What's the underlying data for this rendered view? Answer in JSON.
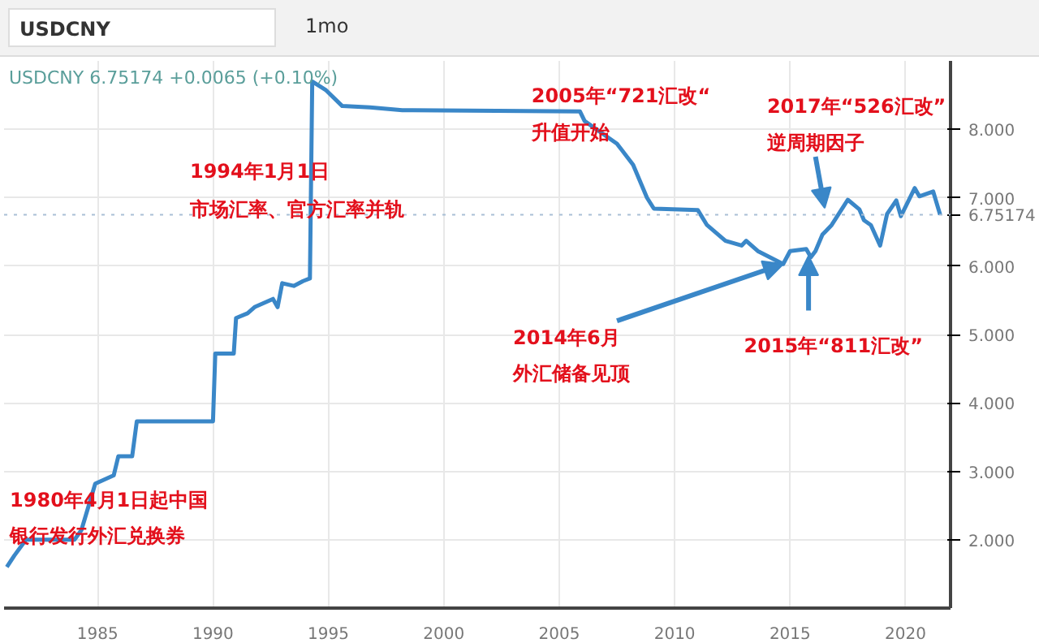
{
  "chart_data": {
    "type": "line",
    "title": "USDCNY",
    "subtitle": "USDCNY 6.75174 +0.0065 (+0.10%)",
    "annotations": [
      "1mo",
      "1994年1月1日",
      "市场汇率、官方汇率并轨",
      "2005年“721汇改“",
      "升值开始",
      "2017年“526汇改”",
      {
        "text": "逆周期因子",
        "x": 2016.5,
        "y": 6.85
      },
      {
        "text": "2014年6月",
        "x": 2014.7,
        "y": 6.03
      },
      "外汇储备见顶",
      {
        "text": "2015年“811汇改”",
        "x": 2015.8,
        "y": 6.15
      },
      "1980年4月1日起中国",
      "银行发行外汇兑换券"
    ],
    "series": [
      {
        "color": "#3a87c8",
        "x": [
          1981.07,
          1981.4,
          1981.9,
          1984.0,
          1984.3,
          1984.9,
          1985.7,
          1985.9,
          1986.5,
          1986.7,
          1990.0,
          1990.1,
          1990.9,
          1991.0,
          1991.5,
          1991.8,
          1992.6,
          1992.8,
          1993.0,
          1993.5,
          1993.9,
          1994.2,
          1994.3,
          1994.9,
          1995.6,
          1996.8,
          1998.2,
          2005.9,
          2006.1,
          2007.5,
          2008.2,
          2008.8,
          2009.1,
          2011.0,
          2011.4,
          2012.2,
          2012.9,
          2013.1,
          2013.6,
          2014.7,
          2015.0,
          2015.7,
          2015.9,
          2016.1,
          2016.4,
          2016.8,
          2017.5,
          2018.0,
          2018.2,
          2018.5,
          2018.9,
          2019.2,
          2019.6,
          2019.8,
          2020.4,
          2020.6,
          2021.2,
          2021.5
        ],
        "values": [
          1.6,
          1.77,
          2.0,
          2.0,
          2.14,
          2.82,
          2.94,
          3.22,
          3.22,
          3.73,
          3.73,
          4.72,
          4.72,
          5.24,
          5.31,
          5.4,
          5.52,
          5.4,
          5.75,
          5.71,
          5.78,
          5.82,
          8.7,
          8.57,
          8.34,
          8.32,
          8.28,
          8.26,
          8.12,
          7.79,
          7.48,
          7.0,
          6.84,
          6.82,
          6.6,
          6.37,
          6.3,
          6.37,
          6.22,
          6.03,
          6.22,
          6.25,
          6.13,
          6.22,
          6.46,
          6.6,
          6.97,
          6.83,
          6.67,
          6.6,
          6.3,
          6.76,
          6.96,
          6.73,
          7.14,
          7.02,
          7.09,
          6.75
        ]
      }
    ],
    "xlim": [
      1980.95,
      2021.95
    ],
    "ylim": [
      1.0,
      9.0
    ],
    "xticks": [
      1985,
      1990,
      1995,
      2000,
      2005,
      2010,
      2015,
      2020
    ],
    "yticks": [
      {
        "value": 2,
        "label": "2.000"
      },
      {
        "value": 3,
        "label": "3.000"
      },
      {
        "value": 4,
        "label": "4.000"
      },
      {
        "value": 5,
        "label": "5.000"
      },
      {
        "value": 6,
        "label": "6.000"
      },
      {
        "value": 7,
        "label": "7.000"
      },
      {
        "value": 8,
        "label": "8.000"
      }
    ],
    "ref_lines": [
      {
        "axis": "y",
        "value": 6.75174,
        "label": "6.75174",
        "color": "#a9bfd6",
        "line_style": "dotted"
      }
    ],
    "grid": true,
    "marker": "none",
    "line_style": "solid"
  }
}
